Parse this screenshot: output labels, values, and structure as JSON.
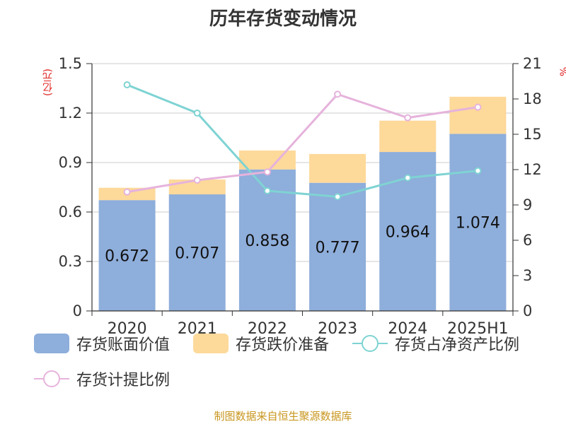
{
  "title": "历年存货变动情况",
  "units": {
    "left": "(亿元)",
    "right": "%"
  },
  "source": "制图数据来自恒生聚源数据库",
  "legend": {
    "book": "存货账面价值",
    "reserve": "存货跌价准备",
    "ratio_net": "存货占净资产比例",
    "ratio_provision": "存货计提比例"
  },
  "colors": {
    "book": "#8eaedb",
    "reserve": "#fdd99a",
    "ratio_net": "#7fd3d3",
    "ratio_provision": "#e6b3dc",
    "grid": "#cccccc",
    "axis": "#333333"
  },
  "chart_data": {
    "type": "bar",
    "categories": [
      "2020",
      "2021",
      "2022",
      "2023",
      "2024",
      "2025H1"
    ],
    "series": [
      {
        "name": "存货账面价值",
        "type": "bar",
        "stack": "total",
        "axis": "left",
        "values": [
          0.672,
          0.707,
          0.858,
          0.777,
          0.964,
          1.074
        ]
      },
      {
        "name": "存货跌价准备",
        "type": "bar",
        "stack": "total",
        "axis": "left",
        "values": [
          0.075,
          0.09,
          0.115,
          0.175,
          0.19,
          0.225
        ]
      },
      {
        "name": "存货占净资产比例",
        "type": "line",
        "axis": "right",
        "values": [
          19.2,
          16.8,
          10.2,
          9.7,
          11.3,
          11.9
        ]
      },
      {
        "name": "存货计提比例",
        "type": "line",
        "axis": "right",
        "values": [
          10.1,
          11.1,
          11.8,
          18.4,
          16.4,
          17.3
        ]
      }
    ],
    "data_labels": [
      "0.672",
      "0.707",
      "0.858",
      "0.777",
      "0.964",
      "1.074"
    ],
    "y_left": {
      "ticks": [
        "0",
        "0.3",
        "0.6",
        "0.9",
        "1.2",
        "1.5"
      ],
      "ylim": [
        0,
        1.5
      ]
    },
    "y_right": {
      "ticks": [
        "0",
        "3",
        "6",
        "9",
        "12",
        "15",
        "18",
        "21"
      ],
      "ylim": [
        0,
        21
      ]
    },
    "grid": true,
    "legend_position": "bottom"
  }
}
